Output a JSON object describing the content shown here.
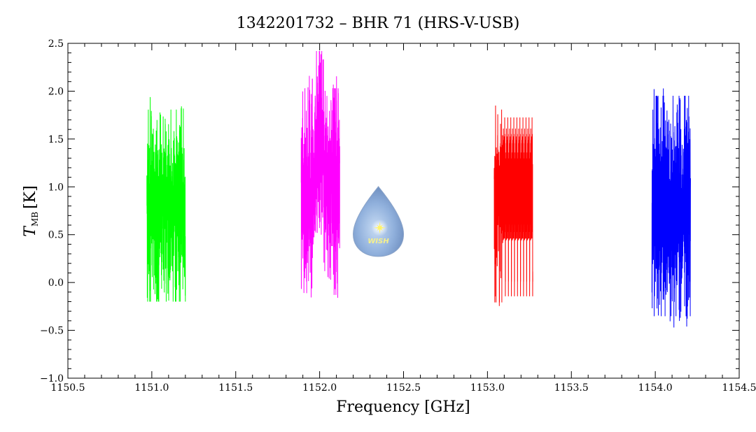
{
  "chart_data": {
    "type": "line",
    "title": "1342201732 – BHR 71 (HRS-V-USB)",
    "xlabel": "Frequency [GHz]",
    "ylabel_main": "T",
    "ylabel_sub": "MB",
    "ylabel_unit": "[K]",
    "xlim": [
      1150.5,
      1154.5
    ],
    "ylim": [
      -1.0,
      2.5
    ],
    "x_ticks": [
      1150.5,
      1151.0,
      1151.5,
      1152.0,
      1152.5,
      1153.0,
      1153.5,
      1154.0,
      1154.5
    ],
    "x_tick_labels": [
      "1150.5",
      "1151.0",
      "1151.5",
      "1152.0",
      "1152.5",
      "1153.0",
      "1153.5",
      "1154.0",
      "1154.5"
    ],
    "y_ticks": [
      -1.0,
      -0.5,
      0.0,
      0.5,
      1.0,
      1.5,
      2.0,
      2.5
    ],
    "y_tick_labels": [
      "−1.0",
      "−0.5",
      "0.0",
      "0.5",
      "1.0",
      "1.5",
      "2.0",
      "2.5"
    ],
    "grid": false,
    "series": [
      {
        "color": "#00ff00",
        "x_range": [
          1150.97,
          1151.2
        ],
        "mean": 0.8,
        "noise": 0.42,
        "min": -0.2,
        "max": 2.03,
        "seed": 11
      },
      {
        "color": "#ff00ff",
        "x_range": [
          1151.89,
          1152.12
        ],
        "mean": 0.95,
        "noise": 0.45,
        "min": -0.32,
        "max": 2.42,
        "seed": 23,
        "peak_x": 1152.0,
        "peak_amp": 0.7,
        "peak_width": 0.03
      },
      {
        "color": "#ff0000",
        "x_range": [
          1153.04,
          1153.27
        ],
        "mean": 0.8,
        "noise": 0.42,
        "min": -0.53,
        "max": 1.85,
        "seed": 37
      },
      {
        "color": "#0000ff",
        "x_range": [
          1153.98,
          1154.21
        ],
        "mean": 0.8,
        "noise": 0.48,
        "min": -0.88,
        "max": 2.08,
        "seed": 53
      }
    ],
    "logo": {
      "label": "WISH",
      "x": 1152.35,
      "y": 0.55
    }
  }
}
